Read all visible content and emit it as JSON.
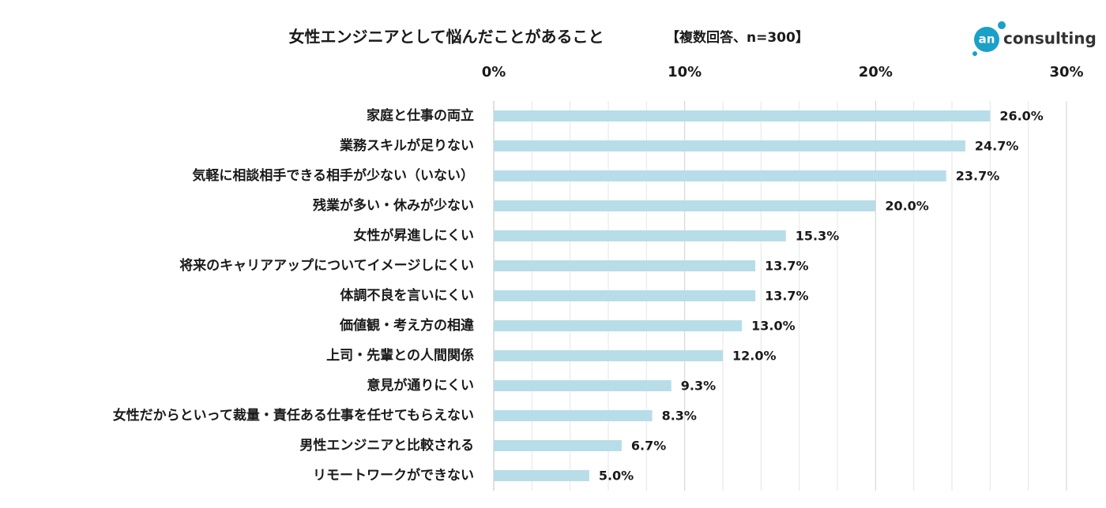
{
  "logo": {
    "mark": "an",
    "text": "consulting"
  },
  "chart_data": {
    "type": "hbar",
    "title": "女性エンジニアとして悩んだことがあること",
    "subtitle": "【複数回答、n=300】",
    "categories": [
      "家庭と仕事の両立",
      "業務スキルが足りない",
      "気軽に相談相手できる相手が少ない（いない）",
      "残業が多い・休みが少ない",
      "女性が昇進しにくい",
      "将来のキャリアアップについてイメージしにくい",
      "体調不良を言いにくい",
      "価値観・考え方の相違",
      "上司・先輩との人間関係",
      "意見が通りにくい",
      "女性だからといって裁量・責任ある仕事を任せてもらえない",
      "男性エンジニアと比較される",
      "リモートワークができない"
    ],
    "values": [
      26.0,
      24.7,
      23.7,
      20.0,
      15.3,
      13.7,
      13.7,
      13.0,
      12.0,
      9.3,
      8.3,
      6.7,
      5.0
    ],
    "value_labels": [
      "26.0%",
      "24.7%",
      "23.7%",
      "20.0%",
      "15.3%",
      "13.7%",
      "13.7%",
      "13.0%",
      "12.0%",
      "9.3%",
      "8.3%",
      "6.7%",
      "5.0%"
    ],
    "color": "#b7dde8",
    "xlim": [
      0,
      30
    ],
    "xticks": [
      {
        "value": 0,
        "label": "0%"
      },
      {
        "value": 10,
        "label": "10%"
      },
      {
        "value": 20,
        "label": "20%"
      },
      {
        "value": 30,
        "label": "30%"
      }
    ],
    "minor_xticks": [
      2,
      4,
      6,
      8,
      12,
      14,
      16,
      18,
      22,
      24,
      26,
      28
    ],
    "grid": true
  }
}
